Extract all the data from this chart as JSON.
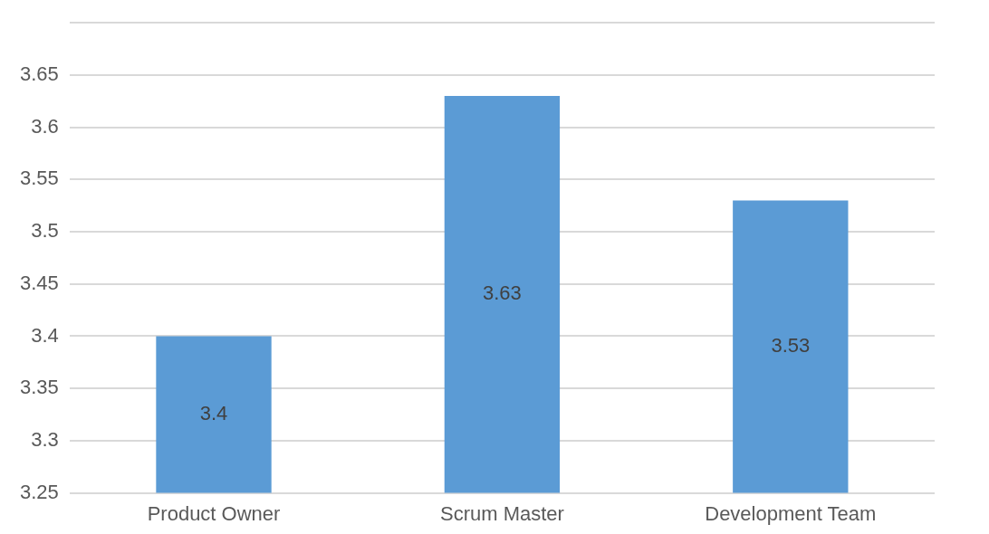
{
  "chart_data": {
    "type": "bar",
    "categories": [
      "Product Owner",
      "Scrum Master",
      "Development Team"
    ],
    "values": [
      3.4,
      3.63,
      3.53
    ],
    "color": "#5b9bd5",
    "ylim": [
      3.25,
      3.7
    ],
    "yticks": [
      3.25,
      3.3,
      3.35,
      3.4,
      3.45,
      3.5,
      3.55,
      3.6,
      3.65,
      {
        "value": 3.7,
        "label": null
      }
    ],
    "grid": "y",
    "data_labels": true,
    "legend": false
  }
}
